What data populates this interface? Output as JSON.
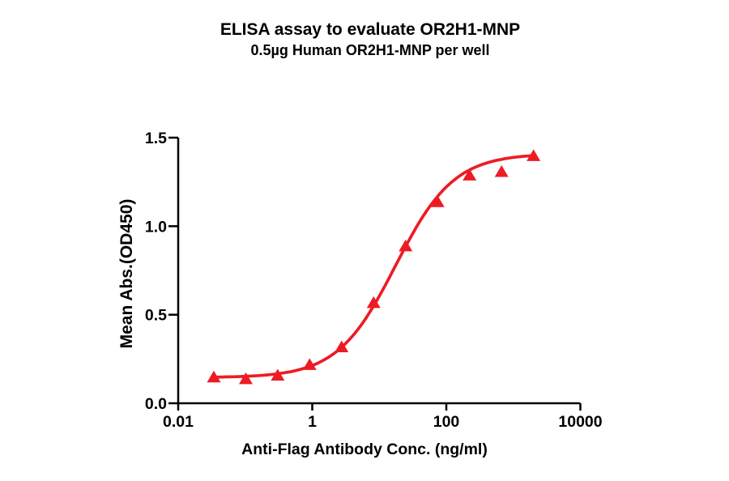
{
  "chart_data": {
    "type": "scatter",
    "title": "ELISA assay to evaluate OR2H1-MNP",
    "subtitle": "0.5µg Human OR2H1-MNP per well",
    "xlabel": "Anti-Flag Antibody Conc. (ng/ml)",
    "ylabel": "Mean Abs.(OD450)",
    "x_scale": "log10",
    "xlim": [
      0.01,
      10000
    ],
    "ylim": [
      0,
      1.5
    ],
    "x_ticks": [
      0.01,
      1,
      100,
      10000
    ],
    "x_tick_labels": [
      "0.01",
      "1",
      "100",
      "10000"
    ],
    "y_ticks": [
      0.0,
      0.5,
      1.0,
      1.5
    ],
    "y_tick_labels": [
      "0.0",
      "0.5",
      "1.0",
      "1.5"
    ],
    "grid": false,
    "legend": false,
    "marker": "triangle-up",
    "line_color": "#ED1C24",
    "axis_color": "#000000",
    "points": [
      {
        "x": 0.034,
        "y": 0.15
      },
      {
        "x": 0.102,
        "y": 0.14
      },
      {
        "x": 0.305,
        "y": 0.16
      },
      {
        "x": 0.914,
        "y": 0.22
      },
      {
        "x": 2.74,
        "y": 0.32
      },
      {
        "x": 8.23,
        "y": 0.57
      },
      {
        "x": 24.7,
        "y": 0.89
      },
      {
        "x": 74.1,
        "y": 1.14
      },
      {
        "x": 222,
        "y": 1.29
      },
      {
        "x": 667,
        "y": 1.31
      },
      {
        "x": 2000,
        "y": 1.4
      }
    ],
    "fit_curve": {
      "model": "4PL",
      "bottom": 0.145,
      "top": 1.41,
      "ec50": 17.5,
      "hill": 1.0,
      "x_start": 0.034,
      "x_end": 2000
    }
  }
}
